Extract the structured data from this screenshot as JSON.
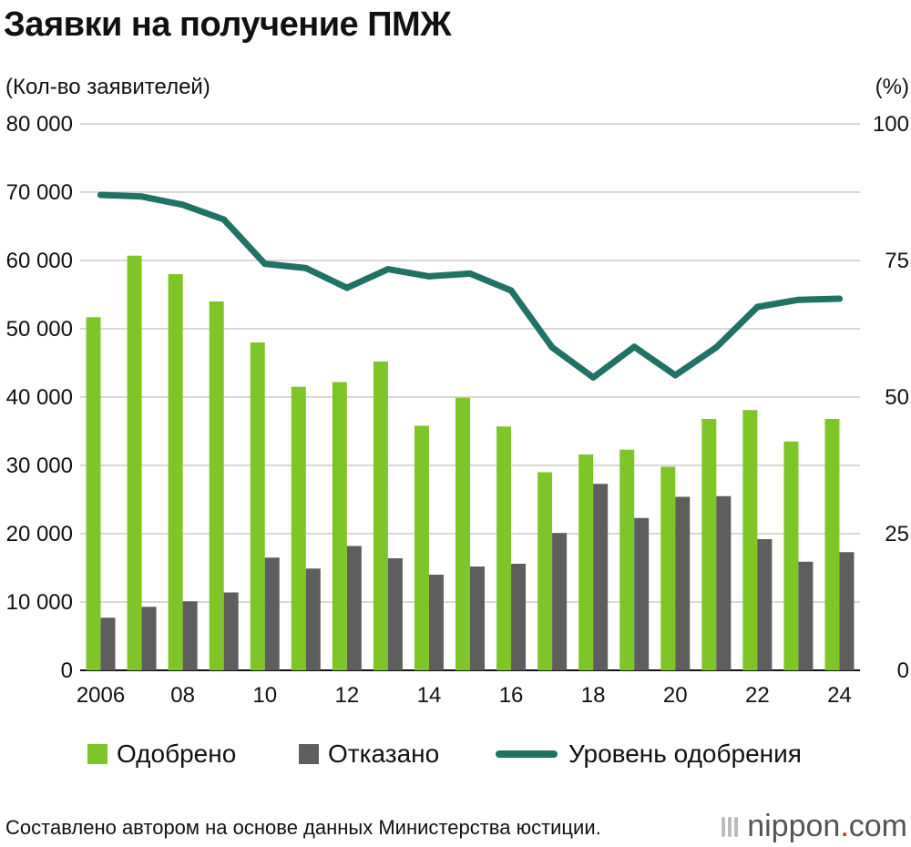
{
  "title": "Заявки на получение ПМЖ",
  "left_unit": "(Кол-во заявителей)",
  "right_unit": "(%)",
  "source": "Составлено автором на основе данных Министерства юстиции.",
  "logo": {
    "name": "nippon",
    "dot": ".",
    "suffix": "com",
    "icon": "nippon-mark-icon"
  },
  "legend": {
    "approved": "Одобрено",
    "rejected": "Отказано",
    "rate": "Уровень одобрения"
  },
  "colors": {
    "approved": "#7ec628",
    "rejected": "#5e5e5e",
    "rate": "#1f7264",
    "grid": "#cccccc"
  },
  "chart_data": {
    "type": "bar",
    "title": "Заявки на получение ПМЖ",
    "ylabel": "(Кол-во заявителей)",
    "y2label": "(%)",
    "x": [
      "2006",
      "2007",
      "2008",
      "2009",
      "2010",
      "2011",
      "2012",
      "2013",
      "2014",
      "2015",
      "2016",
      "2017",
      "2018",
      "2019",
      "2020",
      "2021",
      "2022",
      "2023",
      "2024"
    ],
    "x_tick_labels": [
      "2006",
      "",
      "08",
      "",
      "10",
      "",
      "12",
      "",
      "14",
      "",
      "16",
      "",
      "18",
      "",
      "20",
      "",
      "22",
      "",
      "24"
    ],
    "ylim": [
      0,
      80000
    ],
    "y_ticks": [
      0,
      10000,
      20000,
      30000,
      40000,
      50000,
      60000,
      70000,
      80000
    ],
    "y_tick_labels": [
      "0",
      "10 000",
      "20 000",
      "30 000",
      "40 000",
      "50 000",
      "60 000",
      "70 000",
      "80 000"
    ],
    "y2lim": [
      0,
      100
    ],
    "y2_ticks": [
      0,
      25,
      50,
      75,
      100
    ],
    "y2_tick_labels": [
      "0",
      "25",
      "50",
      "75",
      "100"
    ],
    "grid": true,
    "legend_position": "bottom",
    "series": [
      {
        "name": "Одобрено",
        "type": "bar",
        "axis": "left",
        "values": [
          51700,
          60700,
          58000,
          54000,
          48000,
          41500,
          42200,
          45200,
          35800,
          39900,
          35700,
          29000,
          31600,
          32300,
          29800,
          36800,
          38100,
          33500,
          36800
        ]
      },
      {
        "name": "Отказано",
        "type": "bar",
        "axis": "left",
        "values": [
          7700,
          9300,
          10100,
          11400,
          16500,
          14900,
          18200,
          16400,
          14000,
          15200,
          15600,
          20100,
          27300,
          22300,
          25400,
          25500,
          19200,
          15900,
          17300
        ]
      },
      {
        "name": "Уровень одобрения",
        "type": "line",
        "axis": "right",
        "values": [
          87.0,
          86.7,
          85.2,
          82.5,
          74.4,
          73.6,
          70.0,
          73.4,
          72.1,
          72.6,
          69.5,
          59.1,
          53.6,
          59.2,
          54.0,
          59.1,
          66.5,
          67.8,
          68.0
        ]
      }
    ]
  }
}
